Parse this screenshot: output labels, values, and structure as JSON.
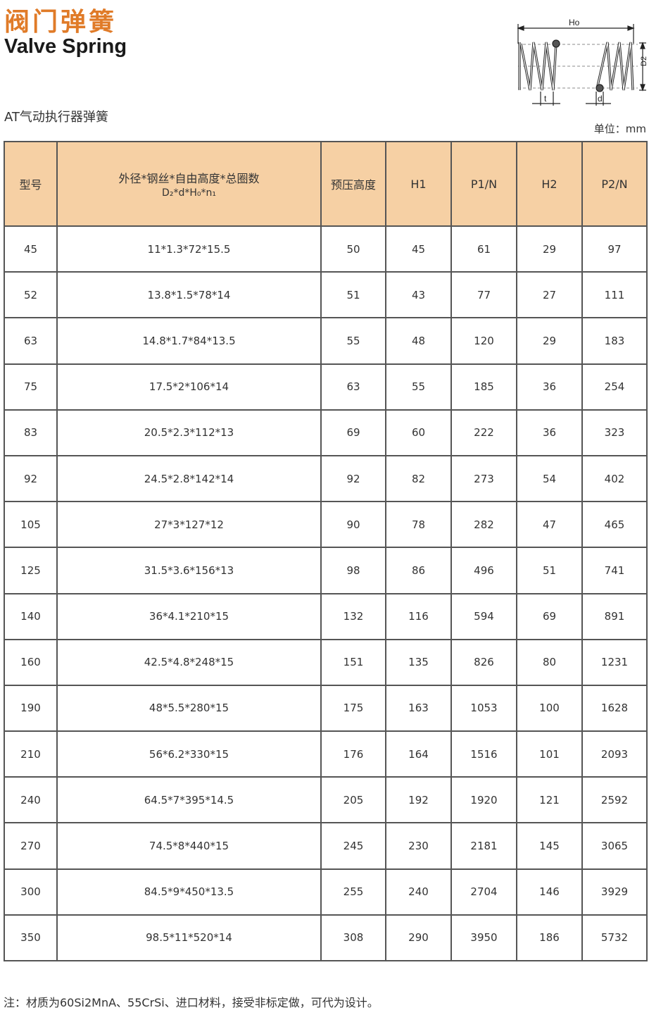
{
  "header": {
    "title_cn": "阀门弹簧",
    "title_en": "Valve Spring",
    "subtitle": "AT气动执行器弹簧",
    "unit": "单位：mm",
    "accent_color": "#e07b28",
    "table_header_color": "#f6d0a4"
  },
  "diagram": {
    "label_ho": "Ho",
    "label_d2": "D2",
    "label_t": "t",
    "label_d": "d"
  },
  "table": {
    "columns": [
      "型号",
      "外径*钢丝*自由高度*总圈数",
      "预压高度",
      "H1",
      "P1/N",
      "H2",
      "P2/N"
    ],
    "spec_formula": "D₂*d*H₀*n₁",
    "rows": [
      [
        "45",
        "11*1.3*72*15.5",
        "50",
        "45",
        "61",
        "29",
        "97"
      ],
      [
        "52",
        "13.8*1.5*78*14",
        "51",
        "43",
        "77",
        "27",
        "111"
      ],
      [
        "63",
        "14.8*1.7*84*13.5",
        "55",
        "48",
        "120",
        "29",
        "183"
      ],
      [
        "75",
        "17.5*2*106*14",
        "63",
        "55",
        "185",
        "36",
        "254"
      ],
      [
        "83",
        "20.5*2.3*112*13",
        "69",
        "60",
        "222",
        "36",
        "323"
      ],
      [
        "92",
        "24.5*2.8*142*14",
        "92",
        "82",
        "273",
        "54",
        "402"
      ],
      [
        "105",
        "27*3*127*12",
        "90",
        "78",
        "282",
        "47",
        "465"
      ],
      [
        "125",
        "31.5*3.6*156*13",
        "98",
        "86",
        "496",
        "51",
        "741"
      ],
      [
        "140",
        "36*4.1*210*15",
        "132",
        "116",
        "594",
        "69",
        "891"
      ],
      [
        "160",
        "42.5*4.8*248*15",
        "151",
        "135",
        "826",
        "80",
        "1231"
      ],
      [
        "190",
        "48*5.5*280*15",
        "175",
        "163",
        "1053",
        "100",
        "1628"
      ],
      [
        "210",
        "56*6.2*330*15",
        "176",
        "164",
        "1516",
        "101",
        "2093"
      ],
      [
        "240",
        "64.5*7*395*14.5",
        "205",
        "192",
        "1920",
        "121",
        "2592"
      ],
      [
        "270",
        "74.5*8*440*15",
        "245",
        "230",
        "2181",
        "145",
        "3065"
      ],
      [
        "300",
        "84.5*9*450*13.5",
        "255",
        "240",
        "2704",
        "146",
        "3929"
      ],
      [
        "350",
        "98.5*11*520*14",
        "308",
        "290",
        "3950",
        "186",
        "5732"
      ]
    ]
  },
  "note": "注：材质为60Si2MnA、55CrSi、进口材料，接受非标定做，可代为设计。"
}
